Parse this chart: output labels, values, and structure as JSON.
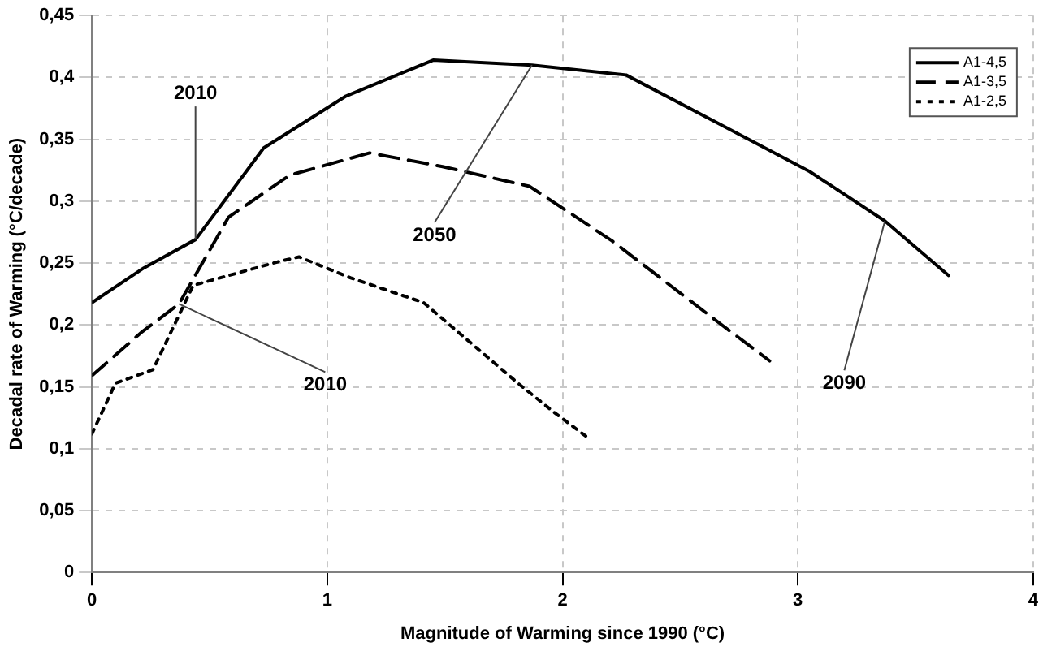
{
  "chart_data": {
    "type": "line",
    "xlabel": "Magnitude of Warming since 1990 (°C)",
    "ylabel": "Decadal rate of Warming (°C/decade)",
    "xlim": [
      0,
      4
    ],
    "xticks": [
      0,
      1,
      2,
      3,
      4
    ],
    "ylim": [
      0,
      0.45
    ],
    "yticks": [
      {
        "value": 0,
        "label": "0"
      },
      {
        "value": 0.05,
        "label": "0,05"
      },
      {
        "value": 0.1,
        "label": "0,1"
      },
      {
        "value": 0.15,
        "label": "0,15"
      },
      {
        "value": 0.2,
        "label": "0,2"
      },
      {
        "value": 0.25,
        "label": "0,25"
      },
      {
        "value": 0.3,
        "label": "0,3"
      },
      {
        "value": 0.35,
        "label": "0,35"
      },
      {
        "value": 0.4,
        "label": "0,4"
      },
      {
        "value": 0.45,
        "label": "0,45"
      }
    ],
    "grid": true,
    "legend": "top right",
    "marker": "none",
    "series": [
      {
        "name": "A1-4,5",
        "color": "#000000",
        "line_style": "solid",
        "x": [
          0,
          0.22,
          0.44,
          0.73,
          1.08,
          1.45,
          1.87,
          2.27,
          2.67,
          3.05,
          3.37,
          3.64
        ],
        "values": [
          0.218,
          0.246,
          0.269,
          0.343,
          0.385,
          0.414,
          0.41,
          0.402,
          0.362,
          0.324,
          0.284,
          0.24
        ]
      },
      {
        "name": "A1-3,5",
        "color": "#000000",
        "line_style": "dashed",
        "x": [
          0,
          0.21,
          0.37,
          0.58,
          0.84,
          1.18,
          1.49,
          1.86,
          2.21,
          2.67,
          2.88
        ],
        "values": [
          0.159,
          0.194,
          0.217,
          0.287,
          0.321,
          0.339,
          0.328,
          0.312,
          0.268,
          0.201,
          0.171
        ]
      },
      {
        "name": "A1-2,5",
        "color": "#000000",
        "line_style": "dotted",
        "x": [
          0,
          0.1,
          0.26,
          0.43,
          0.79,
          0.88,
          1.1,
          1.41,
          1.81,
          1.96,
          2.1
        ],
        "values": [
          0.112,
          0.153,
          0.164,
          0.232,
          0.251,
          0.255,
          0.238,
          0.218,
          0.153,
          0.13,
          0.11
        ]
      }
    ],
    "annotations": [
      {
        "text": "2010",
        "x": 0.44,
        "y": 0.269
      },
      {
        "text": "2010",
        "x": 0.37,
        "y": 0.217
      },
      {
        "text": "2050",
        "x": 1.87,
        "y": 0.41
      },
      {
        "text": "2090",
        "x": 3.37,
        "y": 0.284
      }
    ]
  }
}
